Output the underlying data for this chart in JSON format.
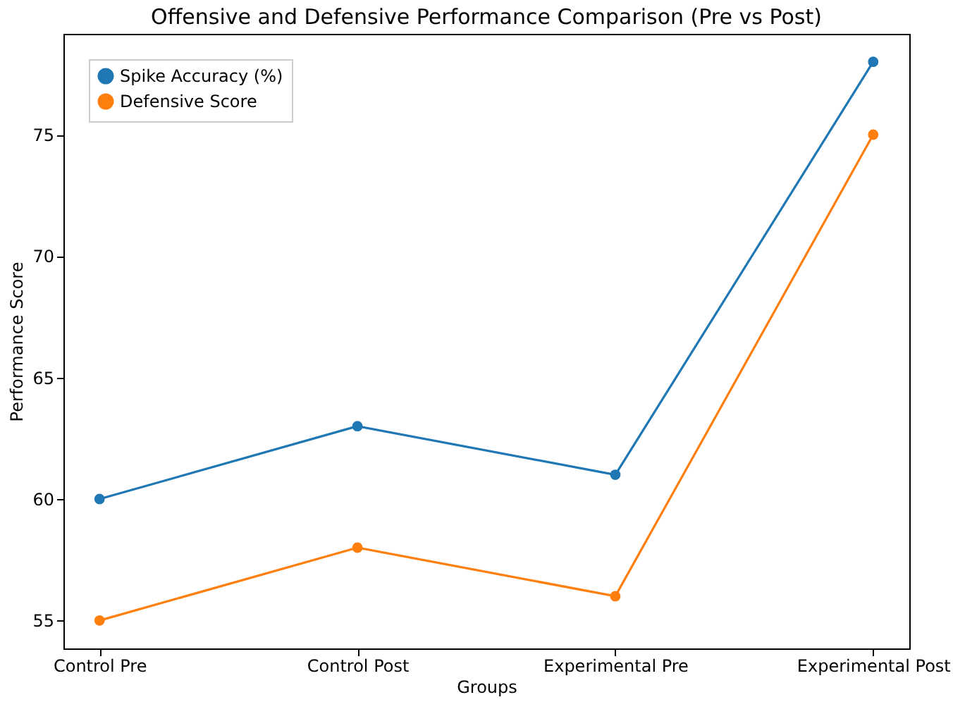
{
  "chart_data": {
    "type": "line",
    "title": "Offensive and Defensive Performance Comparison (Pre vs Post)",
    "xlabel": "Groups",
    "ylabel": "Performance Score",
    "categories": [
      "Control Pre",
      "Control Post",
      "Experimental Pre",
      "Experimental Post"
    ],
    "series": [
      {
        "name": "Spike Accuracy (%)",
        "color": "#1f77b4",
        "values": [
          60,
          63,
          61,
          78
        ]
      },
      {
        "name": "Defensive Score",
        "color": "#ff7f0e",
        "values": [
          55,
          58,
          56,
          75
        ]
      }
    ],
    "ylim": [
      53.85,
      79.15
    ],
    "yticks": [
      55,
      60,
      65,
      70,
      75
    ],
    "grid": false,
    "legend": "top left",
    "marker": "circle",
    "line_style": "solid"
  }
}
